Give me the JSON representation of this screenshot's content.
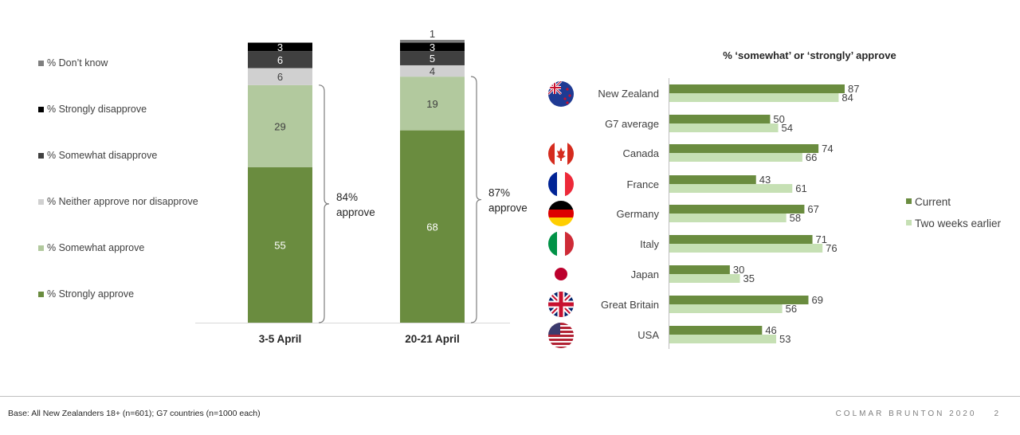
{
  "left_legend": [
    {
      "label": "% Don’t know",
      "color": "#7f7f7f"
    },
    {
      "label": "% Strongly disapprove",
      "color": "#000000"
    },
    {
      "label": "% Somewhat disapprove",
      "color": "#404040"
    },
    {
      "label": "% Neither approve nor disapprove",
      "color": "#d0d0d0"
    },
    {
      "label": "% Somewhat approve",
      "color": "#b2c99e"
    },
    {
      "label": "% Strongly approve",
      "color": "#6a8c3f"
    }
  ],
  "chart_data": [
    {
      "type": "bar",
      "stacked": true,
      "categories": [
        "3-5 April",
        "20-21 April"
      ],
      "series": [
        {
          "name": "% Strongly approve",
          "values": [
            55,
            68
          ],
          "color": "#6a8c3f",
          "label_color": "#ffffff"
        },
        {
          "name": "% Somewhat approve",
          "values": [
            29,
            19
          ],
          "color": "#b2c99e",
          "label_color": "#404040"
        },
        {
          "name": "% Neither approve nor disapprove",
          "values": [
            6,
            4
          ],
          "color": "#d0d0d0",
          "label_color": "#404040"
        },
        {
          "name": "% Somewhat disapprove",
          "values": [
            6,
            5
          ],
          "color": "#404040",
          "label_color": "#ffffff"
        },
        {
          "name": "% Strongly disapprove",
          "values": [
            3,
            3
          ],
          "color": "#000000",
          "label_color": "#ffffff"
        },
        {
          "name": "% Don’t know",
          "values": [
            0,
            1
          ],
          "color": "#7f7f7f",
          "label_color": "#404040"
        }
      ],
      "annotations": [
        {
          "category": "3-5 April",
          "line1": "84%",
          "line2": "approve"
        },
        {
          "category": "20-21 April",
          "line1": "87%",
          "line2": "approve"
        }
      ],
      "ylim": [
        0,
        100
      ]
    },
    {
      "type": "bar",
      "orientation": "horizontal",
      "title": "% ‘somewhat’ or ‘strongly’ approve",
      "categories": [
        "New Zealand",
        "G7 average",
        "Canada",
        "France",
        "Germany",
        "Italy",
        "Japan",
        "Great Britain",
        "USA"
      ],
      "flag_icons": [
        "new-zealand-flag-icon",
        "",
        "canada-flag-icon",
        "france-flag-icon",
        "germany-flag-icon",
        "italy-flag-icon",
        "japan-flag-icon",
        "great-britain-flag-icon",
        "usa-flag-icon"
      ],
      "series": [
        {
          "name": "Current",
          "values": [
            87,
            50,
            74,
            43,
            67,
            71,
            30,
            69,
            46
          ],
          "color": "#6a8c3f"
        },
        {
          "name": "Two weeks earlier",
          "values": [
            84,
            54,
            66,
            61,
            58,
            76,
            35,
            56,
            53
          ],
          "color": "#c6e0b4"
        }
      ],
      "legend": "right",
      "xlim": [
        0,
        100
      ]
    }
  ],
  "footer": {
    "base": "Base: All New Zealanders 18+ (n=601); G7 countries (n=1000 each)",
    "brand": "COLMAR BRUNTON 2020",
    "page": "2"
  }
}
